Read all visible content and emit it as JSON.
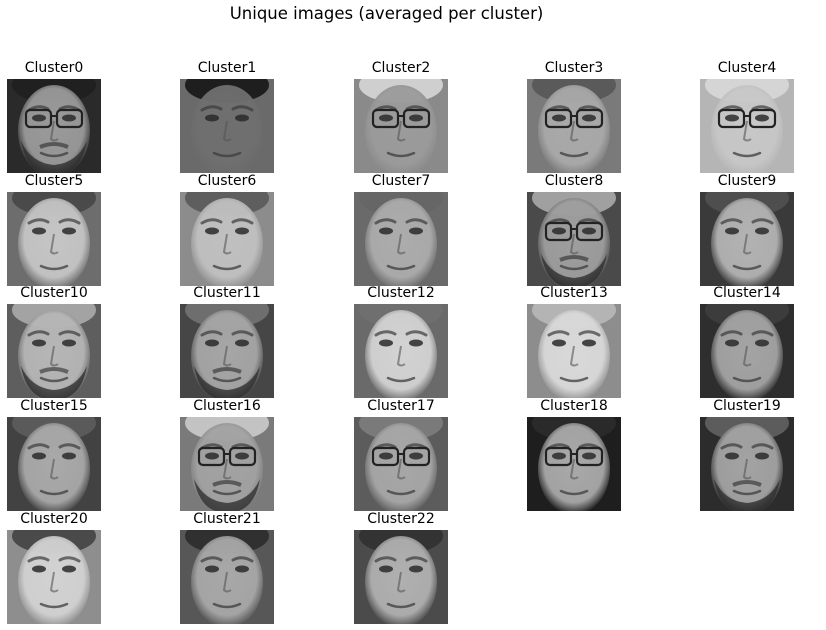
{
  "title": "Unique images (averaged per cluster)",
  "chart_data": {
    "type": "image-grid",
    "title": "Unique images (averaged per cluster)",
    "columns": 5,
    "colormap": "gray",
    "axes": "off",
    "clusters": [
      {
        "label": "Cluster0",
        "glasses": true,
        "beard": true,
        "bg": "#2a2a2a",
        "face": "#9a9a9a",
        "hair": "#202020"
      },
      {
        "label": "Cluster1",
        "glasses": false,
        "beard": false,
        "bg": "#6a6a6a",
        "face": "#6f6f6f",
        "hair": "#1e1e1e"
      },
      {
        "label": "Cluster2",
        "glasses": true,
        "beard": false,
        "bg": "#8a8a8a",
        "face": "#9b9b9b",
        "hair": "#cfcfcf"
      },
      {
        "label": "Cluster3",
        "glasses": true,
        "beard": false,
        "bg": "#7a7a7a",
        "face": "#a9a9a9",
        "hair": "#5a5a5a"
      },
      {
        "label": "Cluster4",
        "glasses": true,
        "beard": false,
        "bg": "#b5b5b5",
        "face": "#c7c7c7",
        "hair": "#d5d5d5"
      },
      {
        "label": "Cluster5",
        "glasses": false,
        "beard": false,
        "bg": "#6d6d6d",
        "face": "#c5c5c5",
        "hair": "#4a4a4a"
      },
      {
        "label": "Cluster6",
        "glasses": false,
        "beard": false,
        "bg": "#8c8c8c",
        "face": "#c0c0c0",
        "hair": "#5e5e5e"
      },
      {
        "label": "Cluster7",
        "glasses": false,
        "beard": false,
        "bg": "#6a6a6a",
        "face": "#acacac",
        "hair": "#666666"
      },
      {
        "label": "Cluster8",
        "glasses": true,
        "beard": true,
        "bg": "#4a4a4a",
        "face": "#9e9e9e",
        "hair": "#a0a0a0"
      },
      {
        "label": "Cluster9",
        "glasses": false,
        "beard": false,
        "bg": "#3a3a3a",
        "face": "#b3b3b3",
        "hair": "#4e4e4e"
      },
      {
        "label": "Cluster10",
        "glasses": false,
        "beard": true,
        "bg": "#5e5e5e",
        "face": "#b6b6b6",
        "hair": "#a3a3a3"
      },
      {
        "label": "Cluster11",
        "glasses": false,
        "beard": true,
        "bg": "#464646",
        "face": "#a6a6a6",
        "hair": "#6e6e6e"
      },
      {
        "label": "Cluster12",
        "glasses": false,
        "beard": false,
        "bg": "#6a6a6a",
        "face": "#d3d3d3",
        "hair": "#6f6f6f"
      },
      {
        "label": "Cluster13",
        "glasses": false,
        "beard": false,
        "bg": "#8d8d8d",
        "face": "#d9d9d9",
        "hair": "#b4b4b4"
      },
      {
        "label": "Cluster14",
        "glasses": false,
        "beard": false,
        "bg": "#2e2e2e",
        "face": "#a4a4a4",
        "hair": "#3c3c3c"
      },
      {
        "label": "Cluster15",
        "glasses": false,
        "beard": false,
        "bg": "#424242",
        "face": "#a9a9a9",
        "hair": "#5a5a5a"
      },
      {
        "label": "Cluster16",
        "glasses": true,
        "beard": true,
        "bg": "#7a7a7a",
        "face": "#a2a2a2",
        "hair": "#c3c3c3"
      },
      {
        "label": "Cluster17",
        "glasses": true,
        "beard": false,
        "bg": "#5c5c5c",
        "face": "#a7a7a7",
        "hair": "#7a7a7a"
      },
      {
        "label": "Cluster18",
        "glasses": true,
        "beard": false,
        "bg": "#1e1e1e",
        "face": "#a9a9a9",
        "hair": "#2a2a2a"
      },
      {
        "label": "Cluster19",
        "glasses": false,
        "beard": true,
        "bg": "#2c2c2c",
        "face": "#a3a3a3",
        "hair": "#5c5c5c"
      },
      {
        "label": "Cluster20",
        "glasses": false,
        "beard": false,
        "bg": "#8e8e8e",
        "face": "#d2d2d2",
        "hair": "#4a4a4a"
      },
      {
        "label": "Cluster21",
        "glasses": false,
        "beard": false,
        "bg": "#575757",
        "face": "#a8a8a8",
        "hair": "#303030"
      },
      {
        "label": "Cluster22",
        "glasses": false,
        "beard": false,
        "bg": "#4b4b4b",
        "face": "#b0b0b0",
        "hair": "#333333"
      }
    ]
  }
}
